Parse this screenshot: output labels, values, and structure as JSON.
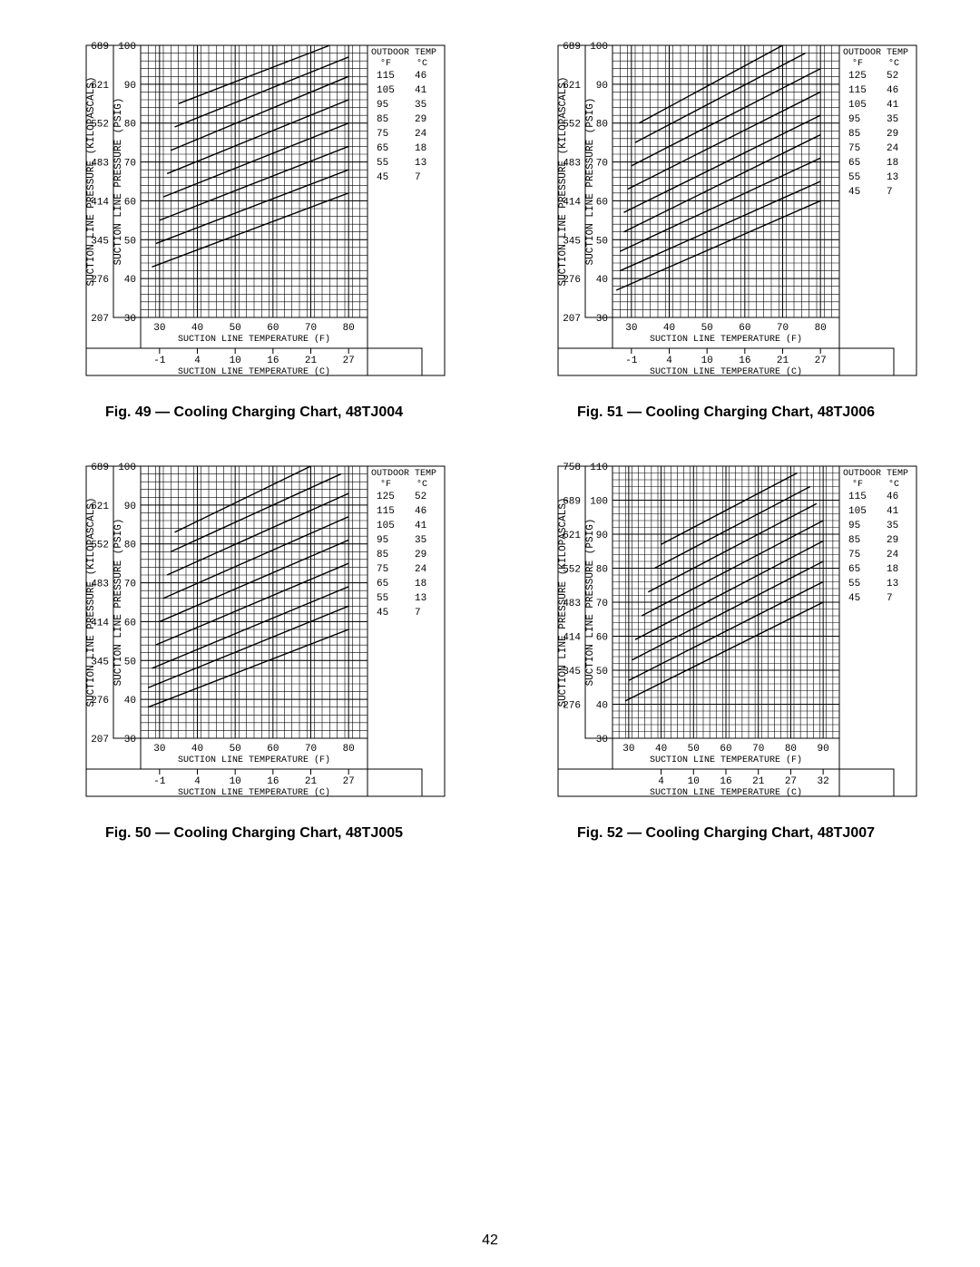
{
  "page_number": "42",
  "chart_common": {
    "x_label_f": "SUCTION LINE TEMPERATURE (F)",
    "x_label_c": "SUCTION LINE TEMPERATURE (C)",
    "x_label_f_alt": "SUCTION LINE TEMPERATURE (°F)",
    "x_label_c_alt": "SUCTION LINE TEMPERATURE (°C)",
    "y_label_kpa": "SUCTION LINE PRESSURE (KILOPASCALS)",
    "y_label_psig": "SUCTION LINE PRESSURE (PSIG)",
    "outdoor_temp_hdr": "OUTDOOR TEMP",
    "f_hdr": "°F",
    "c_hdr": "°C",
    "grid_color": "#000000",
    "line_color": "#000000",
    "bg_color": "#ffffff",
    "line_width": 1.4,
    "grid_width": 0.6
  },
  "charts": [
    {
      "id": "fig49",
      "caption": "Fig. 49 — Cooling Charging Chart, 48TJ004",
      "psig": {
        "min": 30,
        "max": 100,
        "ticks": [
          30,
          40,
          50,
          60,
          70,
          80,
          90,
          100
        ],
        "sub": 2
      },
      "kpa_ticks": [
        207,
        276,
        345,
        414,
        483,
        552,
        621,
        689
      ],
      "xf": {
        "min": 25,
        "max": 85,
        "ticks": [
          30,
          40,
          50,
          60,
          70,
          80
        ],
        "sub": 2
      },
      "xc_ticks": [
        -1,
        4,
        10,
        16,
        21,
        27
      ],
      "outdoor": [
        [
          115,
          46
        ],
        [
          105,
          41
        ],
        [
          95,
          35
        ],
        [
          85,
          29
        ],
        [
          75,
          24
        ],
        [
          65,
          18
        ],
        [
          55,
          13
        ],
        [
          45,
          7
        ]
      ],
      "series": [
        {
          "t": 115,
          "pts": [
            [
              35,
              85
            ],
            [
              75,
              100
            ]
          ]
        },
        {
          "t": 105,
          "pts": [
            [
              34,
              79
            ],
            [
              80,
              97
            ]
          ]
        },
        {
          "t": 95,
          "pts": [
            [
              33,
              73
            ],
            [
              80,
              92
            ]
          ]
        },
        {
          "t": 85,
          "pts": [
            [
              32,
              67
            ],
            [
              80,
              86
            ]
          ]
        },
        {
          "t": 75,
          "pts": [
            [
              31,
              61
            ],
            [
              80,
              80
            ]
          ]
        },
        {
          "t": 65,
          "pts": [
            [
              30,
              55
            ],
            [
              80,
              74
            ]
          ]
        },
        {
          "t": 55,
          "pts": [
            [
              29,
              49
            ],
            [
              80,
              68
            ]
          ]
        },
        {
          "t": 45,
          "pts": [
            [
              28,
              43
            ],
            [
              80,
              62
            ]
          ]
        }
      ]
    },
    {
      "id": "fig51",
      "caption": "Fig. 51 — Cooling Charging Chart, 48TJ006",
      "psig": {
        "min": 30,
        "max": 100,
        "ticks": [
          30,
          40,
          50,
          60,
          70,
          80,
          90,
          100
        ],
        "sub": 2
      },
      "kpa_ticks": [
        207,
        276,
        345,
        414,
        483,
        552,
        621,
        689
      ],
      "xf": {
        "min": 25,
        "max": 85,
        "ticks": [
          30,
          40,
          50,
          60,
          70,
          80
        ],
        "sub": 2
      },
      "xc_ticks": [
        -1,
        4,
        10,
        16,
        21,
        27
      ],
      "outdoor": [
        [
          125,
          52
        ],
        [
          115,
          46
        ],
        [
          105,
          41
        ],
        [
          95,
          35
        ],
        [
          85,
          29
        ],
        [
          75,
          24
        ],
        [
          65,
          18
        ],
        [
          55,
          13
        ],
        [
          45,
          7
        ]
      ],
      "series": [
        {
          "t": 125,
          "pts": [
            [
              32,
              80
            ],
            [
              70,
              100
            ]
          ]
        },
        {
          "t": 115,
          "pts": [
            [
              31,
              75
            ],
            [
              76,
              98
            ]
          ]
        },
        {
          "t": 105,
          "pts": [
            [
              30,
              69
            ],
            [
              80,
              94
            ]
          ]
        },
        {
          "t": 95,
          "pts": [
            [
              29,
              63
            ],
            [
              80,
              88
            ]
          ]
        },
        {
          "t": 85,
          "pts": [
            [
              28,
              57
            ],
            [
              80,
              82
            ]
          ]
        },
        {
          "t": 75,
          "pts": [
            [
              28,
              52
            ],
            [
              80,
              77
            ]
          ]
        },
        {
          "t": 65,
          "pts": [
            [
              27,
              47
            ],
            [
              80,
              71
            ]
          ]
        },
        {
          "t": 55,
          "pts": [
            [
              27,
              42
            ],
            [
              80,
              65
            ]
          ]
        },
        {
          "t": 45,
          "pts": [
            [
              26,
              37
            ],
            [
              80,
              60
            ]
          ]
        }
      ]
    },
    {
      "id": "fig50",
      "caption": "Fig. 50 — Cooling Charging Chart, 48TJ005",
      "psig": {
        "min": 30,
        "max": 100,
        "ticks": [
          30,
          40,
          50,
          60,
          70,
          80,
          90,
          100
        ],
        "sub": 2
      },
      "kpa_ticks": [
        207,
        276,
        345,
        414,
        483,
        552,
        621,
        689
      ],
      "xf": {
        "min": 25,
        "max": 85,
        "ticks": [
          30,
          40,
          50,
          60,
          70,
          80
        ],
        "sub": 2
      },
      "xc_ticks": [
        -1,
        4,
        10,
        16,
        21,
        27
      ],
      "outdoor": [
        [
          125,
          52
        ],
        [
          115,
          46
        ],
        [
          105,
          41
        ],
        [
          95,
          35
        ],
        [
          85,
          29
        ],
        [
          75,
          24
        ],
        [
          65,
          18
        ],
        [
          55,
          13
        ],
        [
          45,
          7
        ]
      ],
      "series": [
        {
          "t": 125,
          "pts": [
            [
              34,
              83
            ],
            [
              70,
              100
            ]
          ]
        },
        {
          "t": 115,
          "pts": [
            [
              33,
              78
            ],
            [
              78,
              98
            ]
          ]
        },
        {
          "t": 105,
          "pts": [
            [
              32,
              72
            ],
            [
              80,
              93
            ]
          ]
        },
        {
          "t": 95,
          "pts": [
            [
              31,
              66
            ],
            [
              80,
              87
            ]
          ]
        },
        {
          "t": 85,
          "pts": [
            [
              30,
              60
            ],
            [
              80,
              81
            ]
          ]
        },
        {
          "t": 75,
          "pts": [
            [
              29,
              54
            ],
            [
              80,
              75
            ]
          ]
        },
        {
          "t": 65,
          "pts": [
            [
              28,
              48
            ],
            [
              80,
              69
            ]
          ]
        },
        {
          "t": 55,
          "pts": [
            [
              27,
              43
            ],
            [
              80,
              64
            ]
          ]
        },
        {
          "t": 45,
          "pts": [
            [
              27,
              38
            ],
            [
              80,
              58
            ]
          ]
        }
      ]
    },
    {
      "id": "fig52",
      "caption": "Fig. 52 — Cooling Charging Chart, 48TJ007",
      "psig": {
        "min": 30,
        "max": 110,
        "ticks": [
          30,
          40,
          50,
          60,
          70,
          80,
          90,
          100,
          110
        ],
        "sub": 2
      },
      "kpa_ticks": [
        276,
        345,
        414,
        483,
        552,
        621,
        689,
        758
      ],
      "kpa_tick_psig": [
        40,
        50,
        60,
        70,
        80,
        90,
        100,
        110
      ],
      "xf": {
        "min": 25,
        "max": 95,
        "ticks": [
          30,
          40,
          50,
          60,
          70,
          80,
          90
        ],
        "sub": 2
      },
      "xc_ticks": [
        4,
        10,
        16,
        21,
        27,
        32
      ],
      "xc_tick_xf": [
        40,
        50,
        60,
        70,
        80,
        90
      ],
      "outdoor": [
        [
          115,
          46
        ],
        [
          105,
          41
        ],
        [
          95,
          35
        ],
        [
          85,
          29
        ],
        [
          75,
          24
        ],
        [
          65,
          18
        ],
        [
          55,
          13
        ],
        [
          45,
          7
        ]
      ],
      "series": [
        {
          "t": 115,
          "pts": [
            [
              40,
              87
            ],
            [
              82,
              108
            ]
          ]
        },
        {
          "t": 105,
          "pts": [
            [
              38,
              80
            ],
            [
              86,
              104
            ]
          ]
        },
        {
          "t": 95,
          "pts": [
            [
              36,
              73
            ],
            [
              88,
              99
            ]
          ]
        },
        {
          "t": 85,
          "pts": [
            [
              34,
              66
            ],
            [
              90,
              94
            ]
          ]
        },
        {
          "t": 75,
          "pts": [
            [
              32,
              59
            ],
            [
              90,
              88
            ]
          ]
        },
        {
          "t": 65,
          "pts": [
            [
              31,
              53
            ],
            [
              90,
              82
            ]
          ]
        },
        {
          "t": 55,
          "pts": [
            [
              30,
              47
            ],
            [
              90,
              76
            ]
          ]
        },
        {
          "t": 45,
          "pts": [
            [
              29,
              41
            ],
            [
              90,
              70
            ]
          ]
        }
      ]
    }
  ]
}
